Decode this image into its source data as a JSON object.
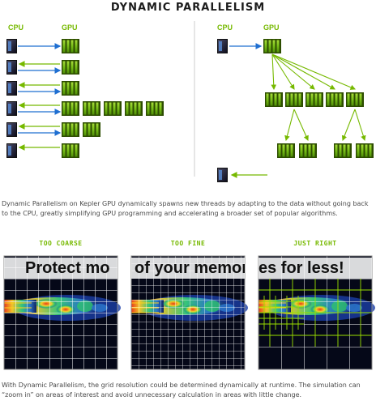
{
  "title": "DYNAMIC PARALLELISM",
  "left_panel": {
    "cpu_label": "CPU",
    "gpu_label": "GPU"
  },
  "right_panel": {
    "cpu_label": "CPU",
    "gpu_label": "GPU"
  },
  "description": "Dynamic Parallelism on Kepler GPU dynamically spawns new threads by adapting to the data without going back to the CPU, greatly simplifying GPU programming and accelerating a broader set of popular algorithms.",
  "panels": [
    {
      "label": "TOO COARSE"
    },
    {
      "label": "TOO FINE"
    },
    {
      "label": "JUST RIGHT"
    }
  ],
  "watermark": {
    "part1": "Protect mo",
    "part2": "of your memories for less!",
    "part3": "es for less!"
  },
  "footer": "With Dynamic Parallelism, the grid resolution could be determined dynamically at runtime. The simulation can “zoom in” on areas of interest and avoid unnecessary calculation in areas with little change.",
  "colors": {
    "green": "#76b900",
    "blue": "#1f6fd1",
    "cpu_dark": "#1a1a2e",
    "divider": "#cccccc"
  }
}
